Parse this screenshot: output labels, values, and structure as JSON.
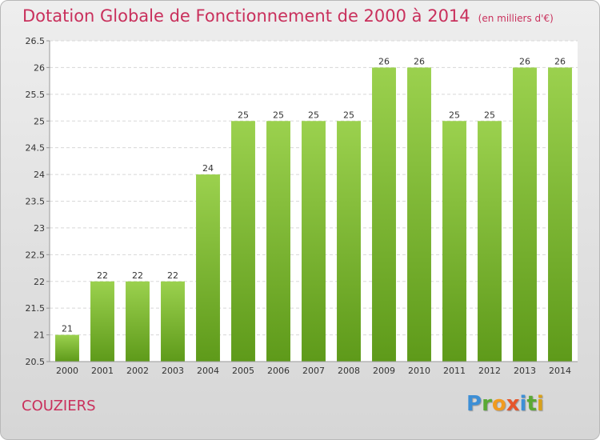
{
  "chart_data": {
    "type": "bar",
    "title": "Dotation Globale de Fonctionnement de 2000 à 2014",
    "subtitle": "(en milliers d'€)",
    "xlabel": "",
    "ylabel": "",
    "categories": [
      "2000",
      "2001",
      "2002",
      "2003",
      "2004",
      "2005",
      "2006",
      "2007",
      "2008",
      "2009",
      "2010",
      "2011",
      "2012",
      "2013",
      "2014"
    ],
    "values": [
      21,
      22,
      22,
      22,
      24,
      25,
      25,
      25,
      25,
      26,
      26,
      25,
      25,
      26,
      26
    ],
    "ylim": [
      20.5,
      26.5
    ],
    "yticks": [
      "20.5",
      "21",
      "21.5",
      "22",
      "22.5",
      "23",
      "23.5",
      "24",
      "24.5",
      "25",
      "25.5",
      "26",
      "26.5"
    ],
    "grid": true,
    "legend": "none",
    "bar_color_top": "#9bd14e",
    "bar_color_bottom": "#5e9a1a"
  },
  "place_name": "COUZIERS",
  "logo": {
    "p": "P",
    "r": "r",
    "o": "o",
    "x": "x",
    "i": "i",
    "t": "t",
    "i2": "i"
  }
}
